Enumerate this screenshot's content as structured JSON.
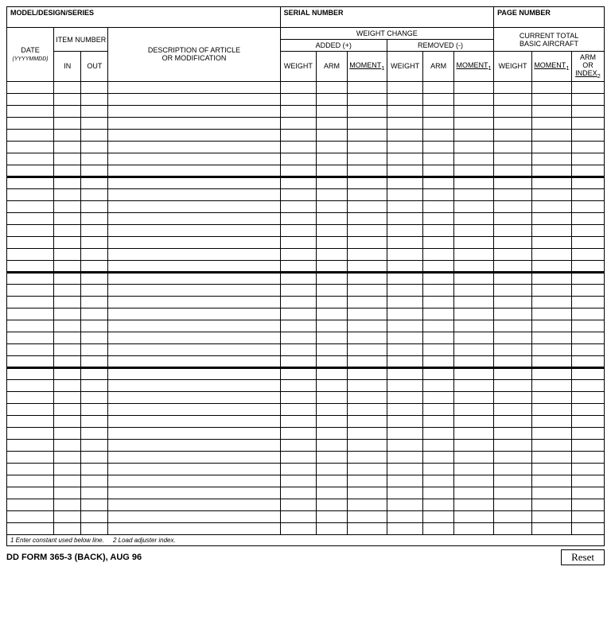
{
  "top": {
    "model_label": "MODEL/DESIGN/SERIES",
    "serial_label": "SERIAL NUMBER",
    "page_label": "PAGE NUMBER"
  },
  "hdr": {
    "date": "DATE",
    "date_sub": "(YYYYMMDD)",
    "item_number": "ITEM NUMBER",
    "in": "IN",
    "out": "OUT",
    "description": "DESCRIPTION OF ARTICLE",
    "description_sub": "OR MODIFICATION",
    "weight_change": "WEIGHT CHANGE",
    "added": "ADDED (+)",
    "removed": "REMOVED (-)",
    "current_total": "CURRENT TOTAL",
    "current_total_sub": "BASIC AIRCRAFT",
    "weight": "WEIGHT",
    "arm": "ARM",
    "moment": "MOMENT",
    "moment_sup": "1",
    "arm_or": "ARM",
    "or": "OR",
    "index": "INDEX",
    "index_sup": "2"
  },
  "footnotes": {
    "f1": "1 Enter constant used below line.",
    "f2": "2 Load adjuster index."
  },
  "form_id": "DD FORM 365-3 (BACK), AUG 96",
  "reset_label": "Reset",
  "row_groups": [
    8,
    8,
    8,
    14
  ],
  "colors": {
    "border": "#000000",
    "bg": "#ffffff",
    "text": "#000000"
  }
}
